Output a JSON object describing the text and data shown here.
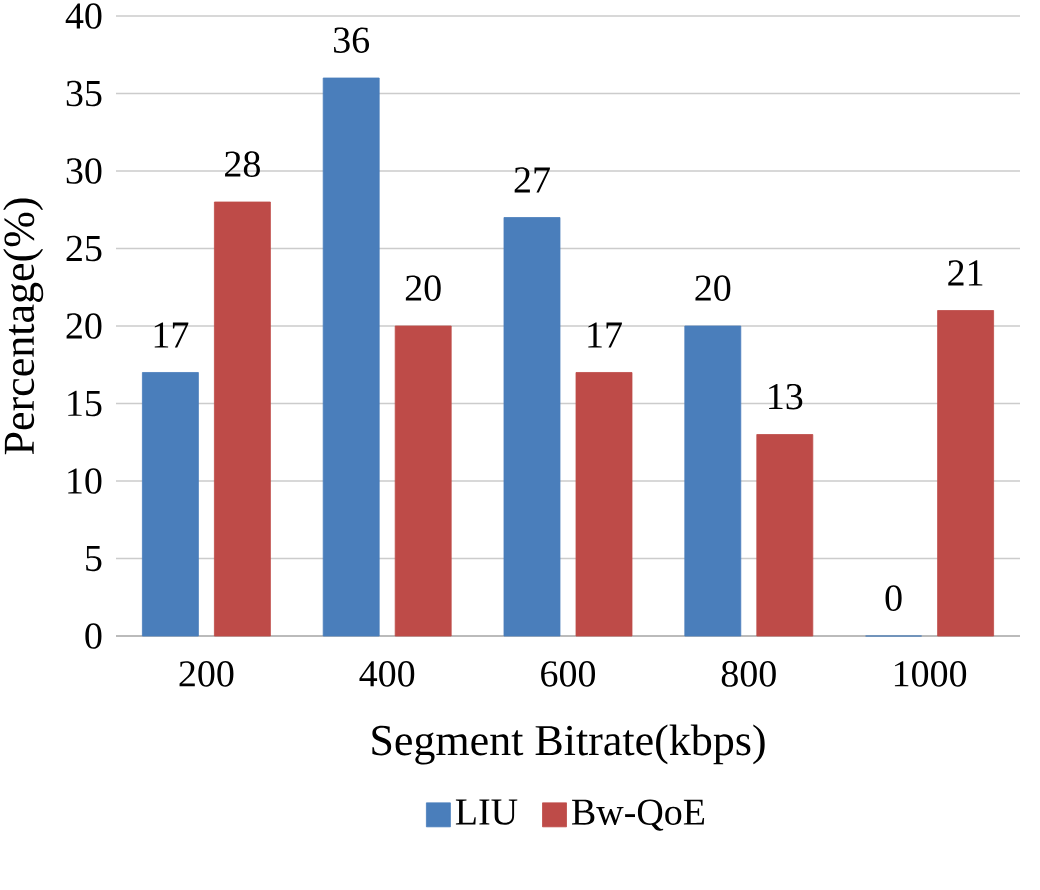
{
  "chart_data": {
    "type": "bar",
    "xlabel": "Segment Bitrate(kbps)",
    "ylabel": "Percentage(%)",
    "categories": [
      "200",
      "400",
      "600",
      "800",
      "1000"
    ],
    "series": [
      {
        "name": "LIU",
        "color": "#4a7ebb",
        "values": [
          17,
          36,
          27,
          20,
          0
        ]
      },
      {
        "name": "Bw-QoE",
        "color": "#be4b48",
        "values": [
          28,
          20,
          17,
          13,
          21
        ]
      }
    ],
    "ylim": [
      0,
      40
    ],
    "yticks": [
      0,
      5,
      10,
      15,
      20,
      25,
      30,
      35,
      40
    ],
    "grid": "y",
    "legend": "bottom",
    "data_labels": true
  }
}
